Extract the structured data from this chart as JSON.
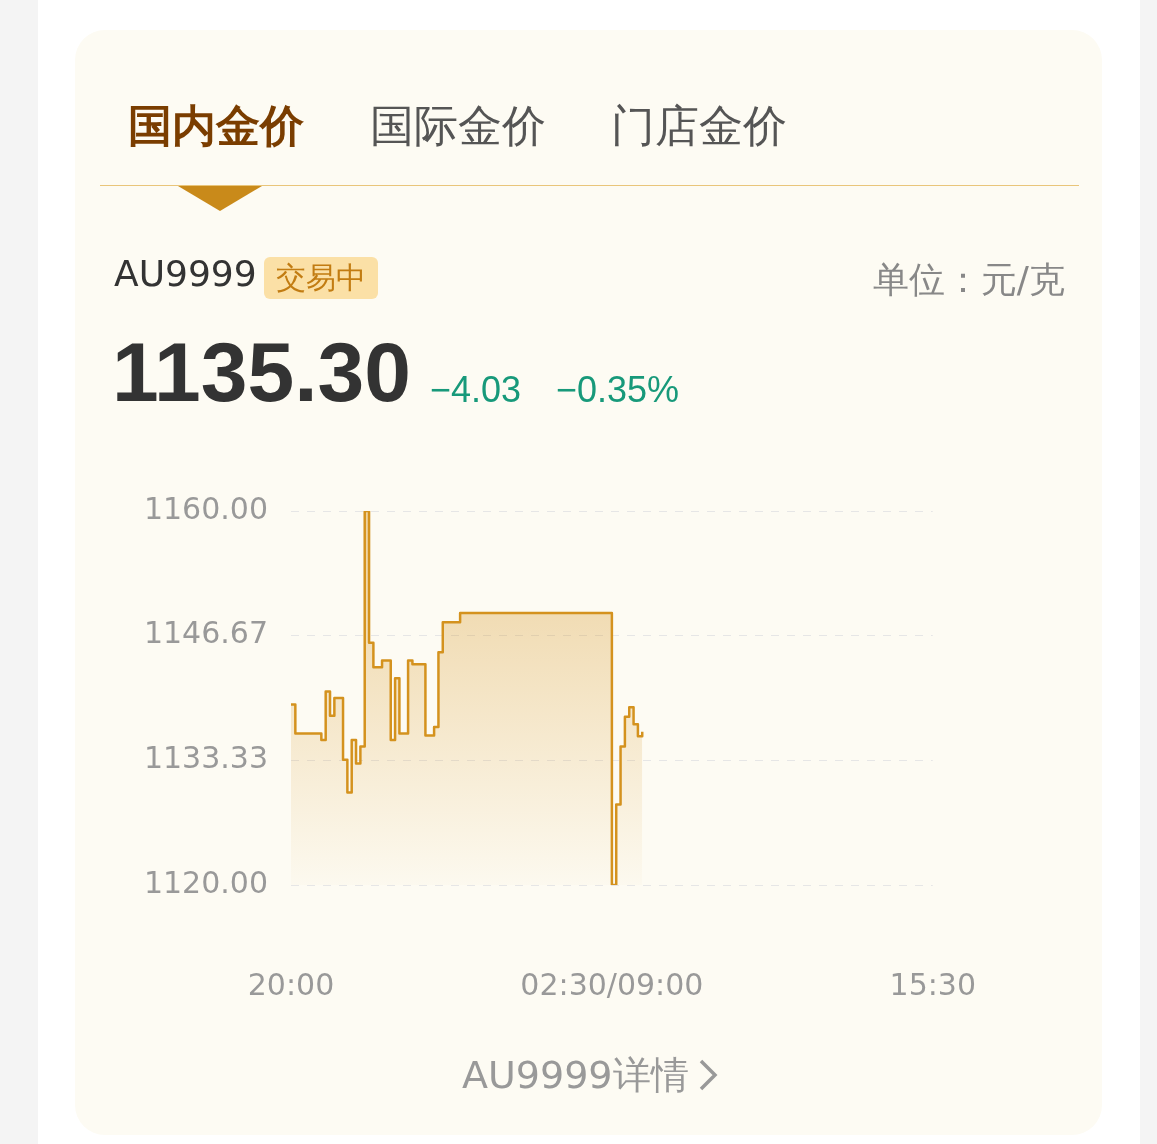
{
  "chart_data": {
    "type": "step",
    "title": "AU9999",
    "annotations": [
      "国内金价",
      "国际金价",
      "门店金价",
      "交易中",
      "1135.30",
      "−4.03",
      "−0.35%",
      "AU9999详情",
      "单位：元/克"
    ],
    "categories": [
      "20:00",
      null,
      null,
      null,
      null,
      null,
      null,
      null,
      null,
      null,
      null,
      null,
      null,
      null,
      null,
      null,
      null,
      null,
      null,
      null,
      null,
      null,
      null,
      null,
      null,
      null,
      null,
      null,
      null,
      null,
      null,
      null,
      null,
      null,
      null,
      null,
      null,
      null,
      null,
      null,
      null,
      null,
      null,
      null,
      null,
      null,
      null,
      null,
      null,
      null,
      null,
      null,
      null,
      null,
      null,
      null,
      null,
      null,
      null,
      null,
      null,
      null,
      null,
      null,
      null,
      null,
      null,
      null,
      null,
      null,
      null,
      null,
      null,
      null,
      "02:30/09:00",
      null,
      null,
      null,
      null,
      null,
      null,
      null,
      null,
      null,
      null,
      null,
      null,
      null,
      null,
      null,
      null,
      null,
      null,
      null,
      null,
      null,
      null,
      null,
      null,
      null,
      null,
      null,
      null,
      null,
      null,
      null,
      null,
      null,
      null,
      null,
      null,
      null,
      null,
      null,
      null,
      null,
      null,
      null,
      null,
      null,
      null,
      null,
      null,
      null,
      null,
      null,
      null,
      null,
      null,
      null,
      null,
      null,
      null,
      null,
      null,
      null,
      null,
      null,
      null,
      null,
      null,
      null,
      null,
      null,
      null,
      null,
      null,
      null,
      "15:30"
    ],
    "ylim": [
      1120,
      1160
    ],
    "yticks": [
      {
        "value": 1120,
        "label": "1120.00"
      },
      {
        "value": 1133.33,
        "label": "1133.33"
      },
      {
        "value": 1146.67,
        "label": "1146.67"
      },
      {
        "value": 1160,
        "label": "1160.00"
      }
    ],
    "grid": "y",
    "legend": false,
    "series": [
      {
        "color": "#d4921e",
        "values": [
          1139.3,
          1136.2,
          1136.2,
          1136.2,
          1136.2,
          1136.2,
          1136.2,
          1135.5,
          1140.7,
          1138.1,
          1140.0,
          1140.0,
          1133.4,
          1129.9,
          1135.5,
          1133.0,
          1134.8,
          1160.0,
          1145.9,
          1143.3,
          1143.3,
          1144.0,
          1144.0,
          1135.5,
          1142.1,
          1136.2,
          1136.2,
          1144.0,
          1143.6,
          1143.6,
          1143.6,
          1136.0,
          1136.0,
          1136.9,
          1144.9,
          1148.1,
          1148.1,
          1148.1,
          1148.1,
          1149.1,
          1149.1,
          1149.1,
          1149.1,
          1149.1,
          1149.1,
          1149.1,
          1149.1,
          1149.1,
          1149.1,
          1149.1,
          1149.1,
          1149.1,
          1149.1,
          1149.1,
          1149.1,
          1149.1,
          1149.1,
          1149.1,
          1149.1,
          1149.1,
          1149.1,
          1149.1,
          1149.1,
          1149.1,
          1149.1,
          1149.1,
          1149.1,
          1149.1,
          1149.1,
          1149.1,
          1149.1,
          1149.1,
          1149.1,
          1149.1,
          1120.0,
          1128.6,
          1134.8,
          1138.0,
          1139.0,
          1137.2,
          1135.9,
          1136.4,
          null,
          null,
          null,
          null,
          null,
          null,
          null,
          null,
          null,
          null,
          null,
          null,
          null,
          null,
          null,
          null,
          null,
          null,
          null,
          null,
          null,
          null,
          null,
          null,
          null,
          null,
          null,
          null,
          null,
          null,
          null,
          null,
          null,
          null,
          null,
          null,
          null,
          null,
          null,
          null,
          null,
          null,
          null,
          null,
          null,
          null,
          null,
          null,
          null,
          null,
          null,
          null,
          null,
          null,
          null,
          null,
          null,
          null,
          null,
          null,
          null,
          null,
          null,
          null,
          null,
          null,
          null
        ]
      }
    ]
  }
}
